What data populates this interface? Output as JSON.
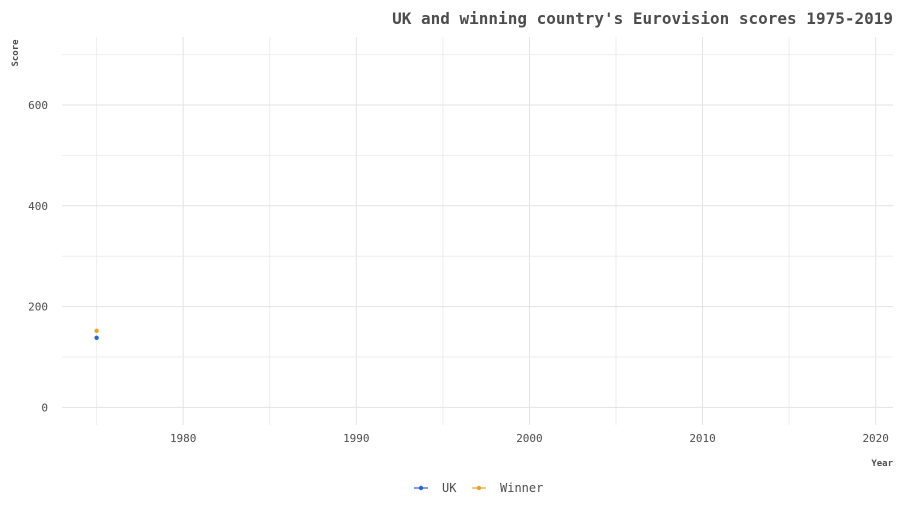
{
  "chart_data": {
    "type": "scatter",
    "title": "UK and winning country's Eurovision scores 1975-2019",
    "xlabel": "Year",
    "ylabel": "Score",
    "xlim": [
      1973,
      2021
    ],
    "ylim": [
      -35,
      735
    ],
    "x_ticks": [
      1980,
      1990,
      2000,
      2010,
      2020
    ],
    "y_ticks": [
      0,
      200,
      400,
      600
    ],
    "grid": true,
    "legend": "bottom",
    "series": [
      {
        "name": "UK",
        "color": "#2a66c9",
        "x": [
          1975
        ],
        "y": [
          138
        ]
      },
      {
        "name": "Winner",
        "color": "#e6a329",
        "x": [
          1975
        ],
        "y": [
          152
        ]
      }
    ]
  }
}
